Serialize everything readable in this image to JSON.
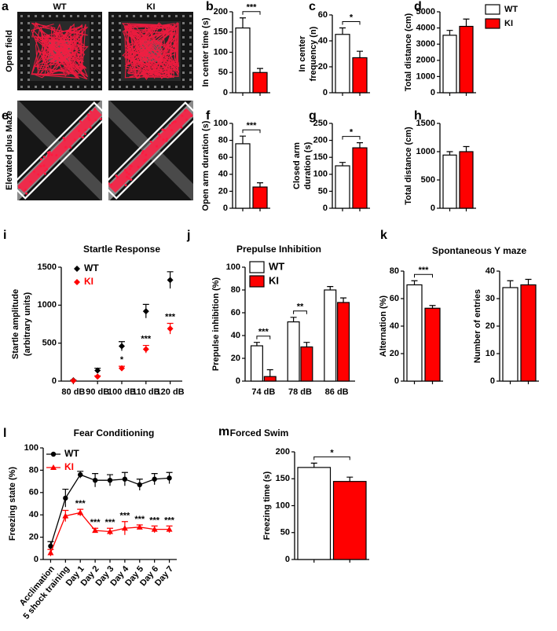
{
  "chart_data": [
    {
      "type": "image",
      "label": "a",
      "captions": [
        "WT",
        "KI"
      ],
      "ylabel": "Open field"
    },
    {
      "type": "bar",
      "label": "b",
      "ylabel": "In center time (s)",
      "values": [
        160,
        50
      ],
      "errors": [
        25,
        10
      ],
      "colors": [
        "#ffffff",
        "#ff0000"
      ],
      "ylim": [
        0,
        200
      ],
      "yticks": [
        0,
        50,
        100,
        150,
        200
      ],
      "significance": "***"
    },
    {
      "type": "bar",
      "label": "c",
      "ylabel": [
        "In center",
        "frequency (n)"
      ],
      "values": [
        45,
        27
      ],
      "errors": [
        5,
        5
      ],
      "colors": [
        "#ffffff",
        "#ff0000"
      ],
      "ylim": [
        0,
        60
      ],
      "yticks": [
        0,
        20,
        40,
        60
      ],
      "significance": "*"
    },
    {
      "type": "bar",
      "label": "d",
      "ylabel": "Total distance (cm)",
      "values": [
        3550,
        4100
      ],
      "errors": [
        300,
        450
      ],
      "colors": [
        "#ffffff",
        "#ff0000"
      ],
      "ylim": [
        0,
        5000
      ],
      "yticks": [
        0,
        1000,
        2000,
        3000,
        4000,
        5000
      ]
    },
    {
      "type": "legend",
      "series": [
        {
          "name": "WT",
          "color": "#ffffff"
        },
        {
          "name": "KI",
          "color": "#ff0000"
        }
      ]
    },
    {
      "type": "image",
      "label": "e",
      "ylabel": "Elevated plus Maze"
    },
    {
      "type": "bar",
      "label": "f",
      "ylabel": "Open arm duration (s)",
      "values": [
        76,
        25
      ],
      "errors": [
        9,
        5
      ],
      "colors": [
        "#ffffff",
        "#ff0000"
      ],
      "ylim": [
        0,
        100
      ],
      "yticks": [
        0,
        20,
        40,
        60,
        80,
        100
      ],
      "significance": "***"
    },
    {
      "type": "bar",
      "label": "g",
      "ylabel": [
        "Closed arm",
        "duration (s)"
      ],
      "values": [
        125,
        178
      ],
      "errors": [
        10,
        15
      ],
      "colors": [
        "#ffffff",
        "#ff0000"
      ],
      "ylim": [
        0,
        250
      ],
      "yticks": [
        0,
        50,
        100,
        150,
        200,
        250
      ],
      "significance": "*"
    },
    {
      "type": "bar",
      "label": "h",
      "ylabel": "Total distance (cm)",
      "values": [
        940,
        1000
      ],
      "errors": [
        60,
        90
      ],
      "colors": [
        "#ffffff",
        "#ff0000"
      ],
      "ylim": [
        0,
        1500
      ],
      "yticks": [
        0,
        500,
        1000,
        1500
      ]
    },
    {
      "type": "dot",
      "label": "i",
      "title": "Startle Response",
      "ylabel": [
        "Startle amplitude",
        "(arbitrary units)"
      ],
      "categories": [
        "80 dB",
        "90 dB",
        "100 dB",
        "110 dB",
        "120 dB"
      ],
      "series": [
        {
          "name": "WT",
          "color": "#000000",
          "values": [
            10,
            140,
            460,
            920,
            1330
          ],
          "errors": [
            5,
            30,
            60,
            90,
            110
          ]
        },
        {
          "name": "KI",
          "color": "#ff0000",
          "values": [
            5,
            60,
            170,
            420,
            690
          ],
          "errors": [
            5,
            10,
            25,
            50,
            70
          ],
          "significance": [
            null,
            null,
            "*",
            "***",
            "***"
          ]
        }
      ],
      "ylim": [
        0,
        1500
      ],
      "yticks": [
        0,
        500,
        1000,
        1500
      ]
    },
    {
      "type": "bar",
      "label": "j",
      "title": "Prepulse Inhibition",
      "ylabel": "Prepulse inhibition (%)",
      "categories": [
        "74 dB",
        "78 dB",
        "86 dB"
      ],
      "series": [
        {
          "name": "WT",
          "color": "#ffffff",
          "values": [
            31,
            52,
            80
          ],
          "errors": [
            3,
            4,
            3
          ]
        },
        {
          "name": "KI",
          "color": "#ff0000",
          "values": [
            4,
            30,
            69
          ],
          "errors": [
            6,
            4,
            4
          ]
        }
      ],
      "significance": [
        "***",
        "**",
        null
      ],
      "ylim": [
        0,
        100
      ],
      "yticks": [
        0,
        20,
        40,
        60,
        80,
        100
      ]
    },
    {
      "type": "bar",
      "label": "k",
      "title": "Spontaneous Y maze",
      "ylabel": "Alternation (%)",
      "values": [
        70,
        53
      ],
      "errors": [
        3,
        2
      ],
      "colors": [
        "#ffffff",
        "#ff0000"
      ],
      "ylim": [
        0,
        80
      ],
      "yticks": [
        0,
        20,
        40,
        60,
        80
      ],
      "significance": "***"
    },
    {
      "type": "bar",
      "ylabel": "Number of entries",
      "values": [
        34,
        35
      ],
      "errors": [
        2.5,
        2
      ],
      "colors": [
        "#ffffff",
        "#ff0000"
      ],
      "ylim": [
        0,
        40
      ],
      "yticks": [
        0,
        10,
        20,
        30,
        40
      ]
    },
    {
      "type": "line",
      "label": "l",
      "title": "Fear Conditioning",
      "ylabel": "Freezing state (%)",
      "categories": [
        "Acclimation",
        "5 shock training",
        "Day 1",
        "Day 2",
        "Day 3",
        "Day 4",
        "Day 5",
        "Day 6",
        "Day 7"
      ],
      "series": [
        {
          "name": "WT",
          "color": "#000000",
          "values": [
            12,
            55,
            76,
            71,
            71,
            72,
            67,
            72,
            73
          ],
          "errors": [
            4,
            8,
            3,
            6,
            5,
            6,
            5,
            5,
            5
          ]
        },
        {
          "name": "KI",
          "color": "#ff0000",
          "values": [
            6,
            39,
            42,
            26,
            25,
            28,
            29,
            27,
            27
          ],
          "errors": [
            3,
            5,
            3,
            2,
            3,
            6,
            2,
            3,
            3
          ],
          "significance": [
            null,
            null,
            "***",
            "***",
            "***",
            "***",
            "***",
            "***",
            "***"
          ]
        }
      ],
      "ylim": [
        0,
        100
      ],
      "yticks": [
        0,
        20,
        40,
        60,
        80,
        100
      ]
    },
    {
      "type": "bar",
      "label": "m",
      "title": "Forced Swim",
      "ylabel": "Freezing time (s)",
      "values": [
        171,
        145
      ],
      "errors": [
        8,
        8
      ],
      "colors": [
        "#ffffff",
        "#ff0000"
      ],
      "ylim": [
        0,
        200
      ],
      "yticks": [
        0,
        50,
        100,
        150,
        200
      ],
      "significance": "*"
    }
  ]
}
